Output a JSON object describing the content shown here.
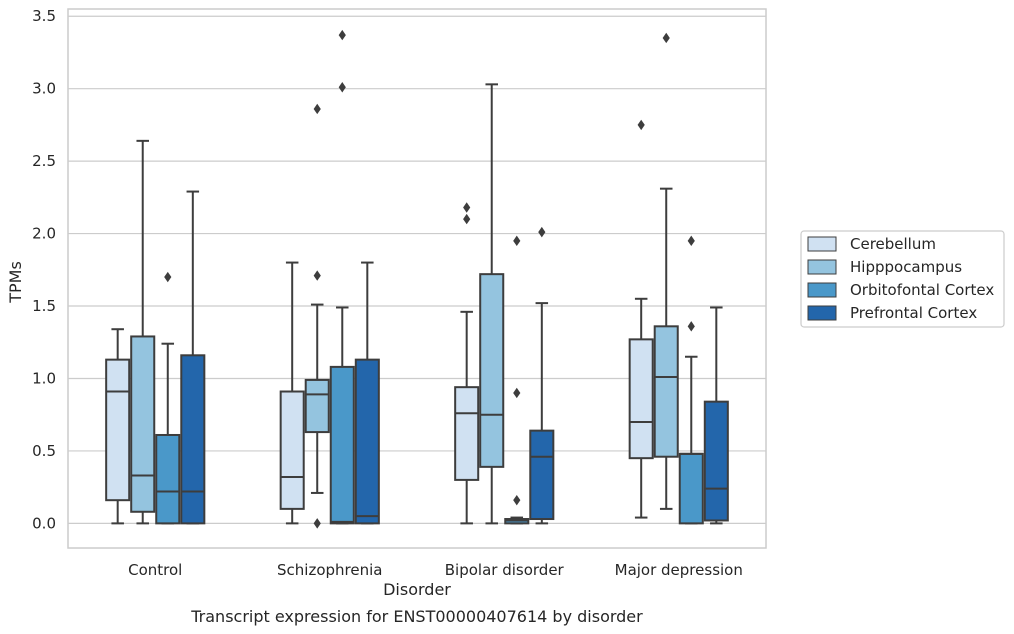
{
  "chart_data": {
    "type": "box",
    "title": "",
    "caption": "Transcript expression for ENST00000407614 by disorder",
    "xlabel": "Disorder",
    "ylabel": "TPMs",
    "ylim": [
      -0.17,
      3.55
    ],
    "yticks": [
      "0.0",
      "0.5",
      "1.0",
      "1.5",
      "2.0",
      "2.5",
      "3.0",
      "3.5"
    ],
    "grid": "horizontal",
    "legend_position": "right",
    "categories": [
      "Control",
      "Schizophrenia",
      "Bipolar disorder",
      "Major depression"
    ],
    "series": [
      {
        "name": "Cerebellum",
        "color": "#d0e1f2",
        "boxes": [
          {
            "whislo": 0.0,
            "q1": 0.16,
            "med": 0.91,
            "q3": 1.13,
            "whishi": 1.34,
            "fliers": []
          },
          {
            "whislo": 0.0,
            "q1": 0.1,
            "med": 0.32,
            "q3": 0.91,
            "whishi": 1.8,
            "fliers": []
          },
          {
            "whislo": 0.0,
            "q1": 0.3,
            "med": 0.76,
            "q3": 0.94,
            "whishi": 1.46,
            "fliers": [
              2.1,
              2.18
            ]
          },
          {
            "whislo": 0.04,
            "q1": 0.45,
            "med": 0.7,
            "q3": 1.27,
            "whishi": 1.55,
            "fliers": [
              2.75
            ]
          }
        ]
      },
      {
        "name": "Hipppocampus",
        "color": "#94c4df",
        "boxes": [
          {
            "whislo": 0.0,
            "q1": 0.08,
            "med": 0.33,
            "q3": 1.29,
            "whishi": 2.64,
            "fliers": []
          },
          {
            "whislo": 0.21,
            "q1": 0.63,
            "med": 0.89,
            "q3": 0.99,
            "whishi": 1.51,
            "fliers": [
              0.0,
              1.71,
              2.86
            ]
          },
          {
            "whislo": 0.0,
            "q1": 0.39,
            "med": 0.75,
            "q3": 1.72,
            "whishi": 3.03,
            "fliers": []
          },
          {
            "whislo": 0.1,
            "q1": 0.46,
            "med": 1.01,
            "q3": 1.36,
            "whishi": 2.31,
            "fliers": [
              3.35
            ]
          }
        ]
      },
      {
        "name": "Orbitofontal Cortex",
        "color": "#4a98c9",
        "boxes": [
          {
            "whislo": 0.0,
            "q1": 0.0,
            "med": 0.22,
            "q3": 0.61,
            "whishi": 1.24,
            "fliers": [
              1.7
            ]
          },
          {
            "whislo": 0.0,
            "q1": 0.0,
            "med": 0.01,
            "q3": 1.08,
            "whishi": 1.49,
            "fliers": [
              3.01,
              3.37
            ]
          },
          {
            "whislo": 0.0,
            "q1": 0.0,
            "med": 0.02,
            "q3": 0.03,
            "whishi": 0.04,
            "fliers": [
              0.16,
              0.9,
              1.95
            ]
          },
          {
            "whislo": 0.0,
            "q1": 0.0,
            "med": 0.48,
            "q3": 0.48,
            "whishi": 1.15,
            "fliers": [
              1.36,
              1.95
            ]
          }
        ]
      },
      {
        "name": "Prefrontal Cortex",
        "color": "#2366ab",
        "boxes": [
          {
            "whislo": 0.0,
            "q1": 0.0,
            "med": 0.22,
            "q3": 1.16,
            "whishi": 2.29,
            "fliers": []
          },
          {
            "whislo": 0.0,
            "q1": 0.0,
            "med": 0.05,
            "q3": 1.13,
            "whishi": 1.8,
            "fliers": []
          },
          {
            "whislo": 0.0,
            "q1": 0.03,
            "med": 0.46,
            "q3": 0.64,
            "whishi": 1.52,
            "fliers": [
              2.01
            ]
          },
          {
            "whislo": 0.0,
            "q1": 0.02,
            "med": 0.24,
            "q3": 0.84,
            "whishi": 1.49,
            "fliers": []
          }
        ]
      }
    ]
  }
}
